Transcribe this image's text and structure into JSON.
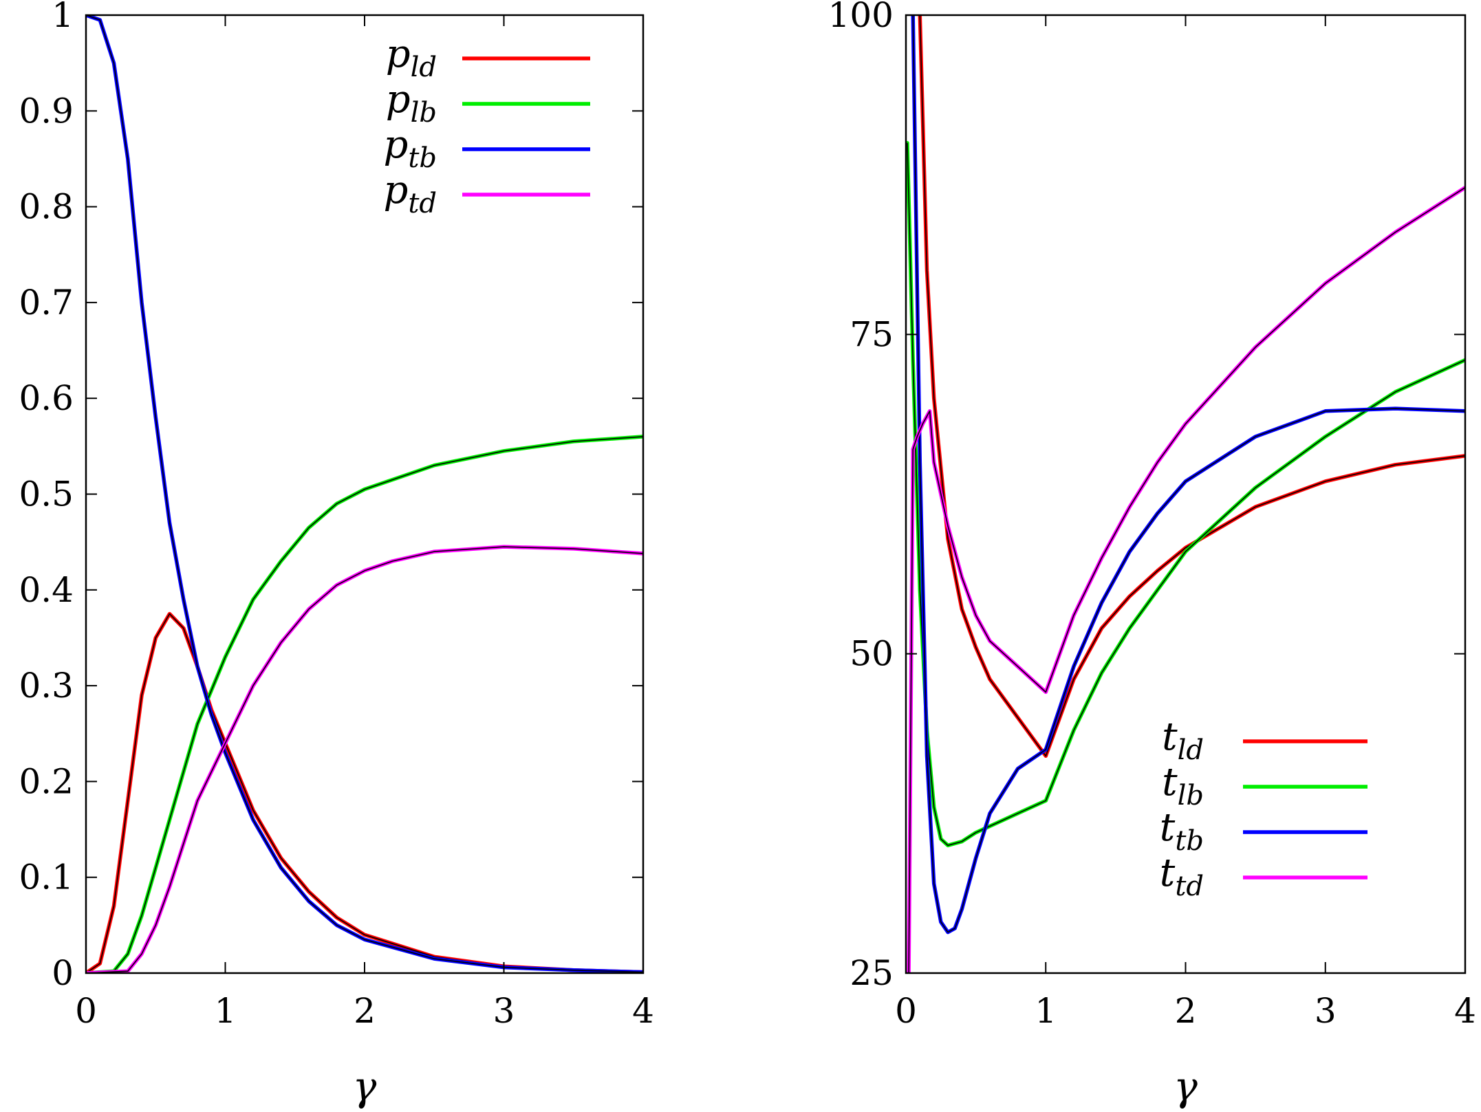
{
  "chart_data": [
    {
      "type": "line",
      "xlabel": "γ",
      "ylabel": "",
      "xlim": [
        0,
        4
      ],
      "ylim": [
        0,
        1
      ],
      "xticks": [
        "0",
        "1",
        "2",
        "3",
        "4"
      ],
      "yticks": [
        "0",
        "0.1",
        "0.2",
        "0.3",
        "0.4",
        "0.5",
        "0.6",
        "0.7",
        "0.8",
        "0.9",
        "1"
      ],
      "legend_position": "top-right",
      "series": [
        {
          "name": "p_ld",
          "label_main": "p",
          "label_sub": "ld",
          "color": "#ff0000",
          "x": [
            0,
            0.1,
            0.2,
            0.3,
            0.4,
            0.5,
            0.6,
            0.7,
            0.8,
            0.9,
            1.0,
            1.2,
            1.4,
            1.6,
            1.8,
            2.0,
            2.5,
            3.0,
            3.5,
            4.0
          ],
          "y": [
            0,
            0.01,
            0.07,
            0.18,
            0.29,
            0.35,
            0.375,
            0.36,
            0.32,
            0.275,
            0.24,
            0.17,
            0.12,
            0.085,
            0.058,
            0.04,
            0.017,
            0.007,
            0.003,
            0.001
          ]
        },
        {
          "name": "p_lb",
          "label_main": "p",
          "label_sub": "lb",
          "color": "#00ee00",
          "x": [
            0,
            0.2,
            0.3,
            0.4,
            0.5,
            0.6,
            0.8,
            1.0,
            1.2,
            1.4,
            1.6,
            1.8,
            2.0,
            2.5,
            3.0,
            3.5,
            4.0
          ],
          "y": [
            0,
            0.002,
            0.02,
            0.06,
            0.11,
            0.16,
            0.26,
            0.33,
            0.39,
            0.43,
            0.465,
            0.49,
            0.505,
            0.53,
            0.545,
            0.555,
            0.56
          ]
        },
        {
          "name": "p_tb",
          "label_main": "p",
          "label_sub": "tb",
          "color": "#0000ff",
          "x": [
            0,
            0.1,
            0.2,
            0.3,
            0.4,
            0.5,
            0.6,
            0.7,
            0.8,
            0.9,
            1.0,
            1.2,
            1.4,
            1.6,
            1.8,
            2.0,
            2.5,
            3.0,
            3.5,
            4.0
          ],
          "y": [
            1.0,
            0.995,
            0.95,
            0.85,
            0.7,
            0.58,
            0.47,
            0.39,
            0.32,
            0.27,
            0.23,
            0.16,
            0.11,
            0.075,
            0.05,
            0.035,
            0.015,
            0.006,
            0.003,
            0.001
          ]
        },
        {
          "name": "p_td",
          "label_main": "p",
          "label_sub": "td",
          "color": "#ff00ff",
          "x": [
            0,
            0.3,
            0.4,
            0.5,
            0.6,
            0.8,
            1.0,
            1.2,
            1.4,
            1.6,
            1.8,
            2.0,
            2.2,
            2.5,
            3.0,
            3.5,
            4.0
          ],
          "y": [
            0,
            0.002,
            0.02,
            0.05,
            0.09,
            0.18,
            0.24,
            0.3,
            0.345,
            0.38,
            0.405,
            0.42,
            0.43,
            0.44,
            0.445,
            0.443,
            0.438
          ]
        }
      ]
    },
    {
      "type": "line",
      "xlabel": "γ",
      "ylabel": "",
      "xlim": [
        0,
        4
      ],
      "ylim": [
        25,
        100
      ],
      "xticks": [
        "0",
        "1",
        "2",
        "3",
        "4"
      ],
      "yticks": [
        "25",
        "50",
        "75",
        "100"
      ],
      "legend_position": "bottom-right",
      "series": [
        {
          "name": "t_ld",
          "label_main": "t",
          "label_sub": "ld",
          "color": "#ff0000",
          "x": [
            0.1,
            0.15,
            0.2,
            0.3,
            0.4,
            0.5,
            0.6,
            0.8,
            1.0,
            1.2,
            1.4,
            1.6,
            1.8,
            2.0,
            2.5,
            3.0,
            3.5,
            4.0
          ],
          "y": [
            100,
            80,
            70,
            59,
            53.5,
            50.5,
            48,
            45,
            42,
            48,
            52,
            54.5,
            56.5,
            58.3,
            61.5,
            63.5,
            64.8,
            65.5
          ]
        },
        {
          "name": "t_lb",
          "label_main": "t",
          "label_sub": "lb",
          "color": "#00ee00",
          "x": [
            0.01,
            0.05,
            0.1,
            0.15,
            0.2,
            0.25,
            0.3,
            0.4,
            0.5,
            0.6,
            0.8,
            1.0,
            1.2,
            1.4,
            1.6,
            1.8,
            2.0,
            2.5,
            3.0,
            3.5,
            4.0
          ],
          "y": [
            90,
            73,
            55,
            44,
            38,
            35.5,
            35,
            35.3,
            36,
            36.5,
            37.5,
            38.5,
            44,
            48.5,
            52,
            55,
            58,
            63,
            67,
            70.5,
            73
          ]
        },
        {
          "name": "t_tb",
          "label_main": "t",
          "label_sub": "tb",
          "color": "#0000ff",
          "x": [
            0.05,
            0.1,
            0.15,
            0.2,
            0.25,
            0.3,
            0.35,
            0.4,
            0.5,
            0.6,
            0.8,
            1.0,
            1.2,
            1.4,
            1.6,
            1.8,
            2.0,
            2.5,
            3.0,
            3.5,
            4.0
          ],
          "y": [
            100,
            65,
            42,
            32,
            29,
            28.2,
            28.5,
            30,
            34,
            37.5,
            41,
            42.5,
            49,
            54,
            58,
            61,
            63.5,
            67,
            69,
            69.2,
            69
          ]
        },
        {
          "name": "t_td",
          "label_main": "t",
          "label_sub": "td",
          "color": "#ff00ff",
          "x": [
            0.02,
            0.05,
            0.08,
            0.12,
            0.17,
            0.2,
            0.3,
            0.4,
            0.5,
            0.6,
            0.8,
            1.0,
            1.2,
            1.4,
            1.6,
            1.8,
            2.0,
            2.5,
            3.0,
            3.5,
            4.0
          ],
          "y": [
            25,
            66,
            67,
            68,
            69,
            65,
            60,
            56,
            53,
            51,
            49,
            47,
            53,
            57.5,
            61.5,
            65,
            68,
            74,
            79,
            83,
            86.5
          ]
        }
      ]
    }
  ]
}
